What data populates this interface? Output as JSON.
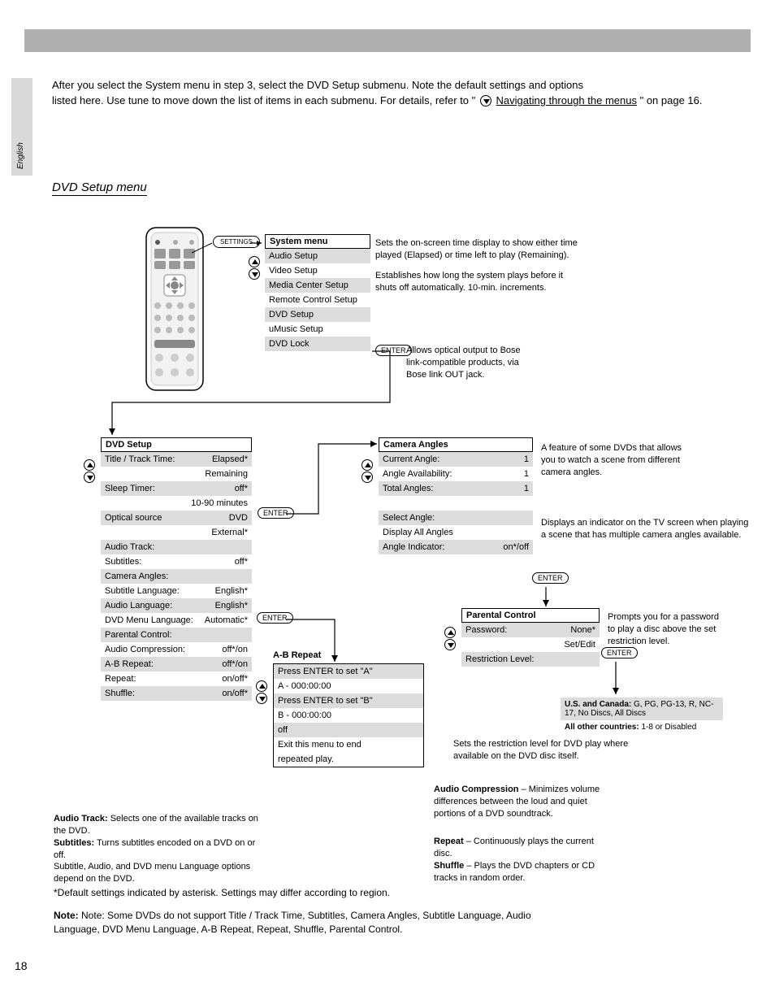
{
  "page_number": "18",
  "side_tab": "English",
  "topbar": {
    "bg": "#b0b0b0"
  },
  "intro_lines": [
    "After you select the System menu in step 3, select the DVD Setup submenu. Note the default settings and options",
    "listed here. Use tune     to move down the list of items in each submenu. For details, refer to \"",
    "\" on page 16."
  ],
  "navigating_text": "Navigating through the menus",
  "section_sub": "DVD Setup menu",
  "enter_label": "ENTER",
  "settings_btn": "SETTINGS",
  "menus": {
    "system": {
      "title": "System menu",
      "rows": [
        {
          "l": "Audio Setup",
          "shaded": true
        },
        {
          "l": "Video Setup",
          "shaded": false
        },
        {
          "l": "Media Center Setup",
          "shaded": true
        },
        {
          "l": "Remote Control Setup",
          "shaded": false
        },
        {
          "l": "DVD Setup",
          "shaded": true
        },
        {
          "l": "uMusic Setup",
          "shaded": false
        },
        {
          "l": "DVD Lock",
          "shaded": true
        }
      ]
    },
    "dvd": {
      "title": "DVD Setup",
      "rows": [
        {
          "l": "Title / Track Time:",
          "r": "Elapsed*",
          "shaded": true
        },
        {
          "l": "",
          "r": "Remaining",
          "shaded": false
        },
        {
          "l": "Sleep Timer:",
          "r": "off*",
          "shaded": true
        },
        {
          "l": "",
          "r": "10-90 minutes",
          "shaded": false
        },
        {
          "l": "Optical source",
          "r": "DVD",
          "shaded": true
        },
        {
          "l": "",
          "r": "External*",
          "shaded": false
        },
        {
          "l": "Audio Track:",
          "r": "",
          "shaded": true
        },
        {
          "l": "Subtitles:",
          "r": "off*",
          "shaded": false
        },
        {
          "l": "Camera Angles:",
          "r": "",
          "shaded": true
        },
        {
          "l": "Subtitle Language:",
          "r": "English*",
          "shaded": false
        },
        {
          "l": "Audio Language:",
          "r": "English*",
          "shaded": true
        },
        {
          "l": "DVD Menu Language:",
          "r": "Automatic*",
          "shaded": false
        },
        {
          "l": "Parental Control:",
          "r": "",
          "shaded": true
        },
        {
          "l": "Audio Compression:",
          "r": "off*/on",
          "shaded": false
        },
        {
          "l": "A-B Repeat:",
          "r": "off*/on",
          "shaded": true
        },
        {
          "l": "Repeat:",
          "r": "on/off*",
          "shaded": false
        },
        {
          "l": "Shuffle:",
          "r": "on/off*",
          "shaded": true
        }
      ]
    },
    "ab_repeat": {
      "rows": [
        {
          "l": "Press ENTER to set \"A\"",
          "shaded": true
        },
        {
          "l": "A - 000:00:00",
          "shaded": false
        },
        {
          "l": "Press ENTER to set \"B\"",
          "shaded": true
        },
        {
          "l": "B - 000:00:00",
          "shaded": false
        },
        {
          "l": "off",
          "shaded": true
        },
        {
          "l": "Exit this menu to end",
          "shaded": false
        },
        {
          "l": "repeated play.",
          "shaded": false
        }
      ]
    },
    "camera": {
      "title": "Camera Angles",
      "rows": [
        {
          "l": "Current Angle:",
          "r": "1",
          "shaded": true
        },
        {
          "l": "Angle Availability:",
          "r": "1",
          "shaded": false
        },
        {
          "l": "Total Angles:",
          "r": "1",
          "shaded": true
        },
        {
          "l": "",
          "r": "",
          "shaded": false
        },
        {
          "l": "Select Angle:",
          "r": "",
          "shaded": true
        },
        {
          "l": "Display All Angles",
          "r": "",
          "shaded": false
        },
        {
          "l": "Angle Indicator:",
          "r": "on*/off",
          "shaded": true
        }
      ]
    },
    "parental": {
      "title": "Parental Control",
      "rows": [
        {
          "l": "Password:",
          "r": "None*",
          "shaded": true
        },
        {
          "l": "",
          "r": "Set/Edit",
          "shaded": false
        },
        {
          "l": "Restriction Level:",
          "r": "",
          "shaded": true
        }
      ]
    },
    "restriction": {
      "rows": [
        {
          "l": "U.S. and Canada:",
          "r": "G, PG, PG-13, R, NC-17, No Discs, All Discs",
          "shaded": true
        },
        {
          "l": "All other countries:",
          "r": "1-8 or Disabled",
          "shaded": false
        }
      ]
    }
  },
  "ab_note": "A-B Repeat",
  "footnote_line": "*Default settings indicated by asterisk. Settings may differ according to region.",
  "note_lines": [
    "Note: Some DVDs do not support Title / Track Time, Subtitles, Camera Angles, Subtitle Language, Audio",
    "Language, DVD Menu Language, A-B Repeat, Repeat, Shuffle, Parental Control."
  ],
  "desc": {
    "title_track": [
      "Sets the on-screen time display to show either time",
      "played (Elapsed) or time left to play (Remaining)."
    ],
    "sleep": [
      "Establishes how long the system plays before it",
      "shuts off automatically. 10-min. increments."
    ],
    "optical": [
      "Allows optical output to Bose",
      "link-compatible products, via",
      "Bose link OUT jack."
    ],
    "audio_track": [
      "Selects one of the available",
      "tracks on the DVD."
    ],
    "subtitles": [
      "Turns subtitles encoded on a",
      "DVD on or off."
    ],
    "sub_lang": [
      "Subtitle, Audio, and DVD menu",
      "Language options depend on the DVD."
    ],
    "audio_comp": [
      "Minimizes volume differences",
      "between the loud and quiet",
      "portions of a DVD",
      "soundtrack."
    ],
    "repeat": [
      "Continuously plays the current",
      "disc."
    ],
    "shuffle": [
      "Plays the DVD chapters or CD",
      "tracks in random order."
    ],
    "camera_box": [
      "A feature of some DVDs that allows",
      "you to watch a scene from different",
      "camera angles."
    ],
    "angle_ind": [
      "Displays an indicator on the TV screen when playing",
      "a scene that has multiple camera angles available."
    ],
    "password": [
      "Prompts you for a password",
      "to play a disc above the set",
      "restriction level."
    ],
    "restriction_note": [
      "Sets the restriction level for DVD play where",
      "available on the DVD disc itself."
    ]
  },
  "colors": {
    "shade": "#dcdcdc",
    "bar": "#b0b0b0"
  }
}
